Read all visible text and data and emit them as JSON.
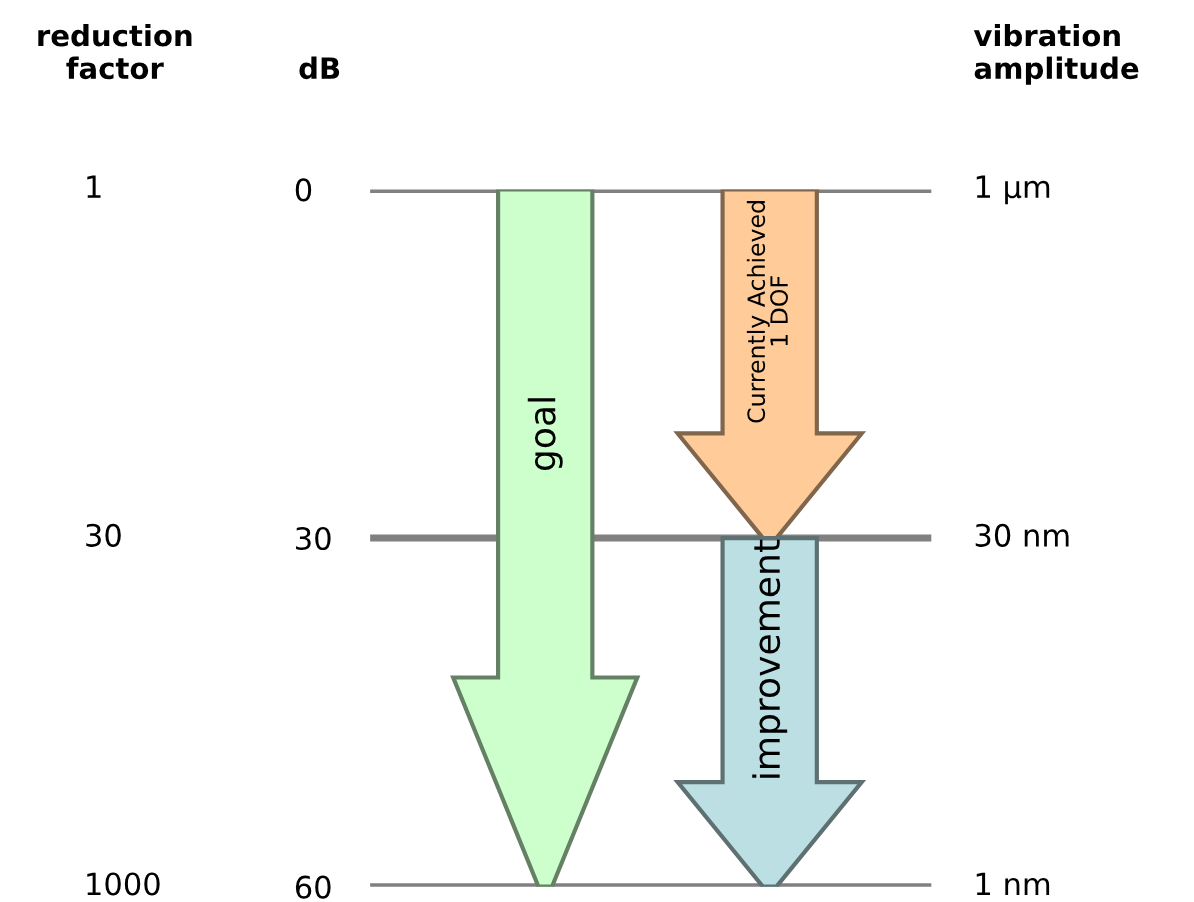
{
  "chart_data": {
    "type": "bar",
    "stacked": true,
    "categories": [
      null,
      null
    ],
    "series": [
      {
        "name": "goal",
        "color": "#ccffcc",
        "values": [
          60,
          null
        ]
      },
      {
        "name": "Currently Achieved\n1 DOF",
        "color": "#ffcc99",
        "values": [
          null,
          30
        ]
      },
      {
        "name": "improvement",
        "color": "#bbdfe3",
        "values": [
          null,
          30
        ]
      }
    ],
    "ylabel": "dB",
    "ylim": [
      60,
      0
    ],
    "yticks": [
      0,
      30,
      60
    ],
    "annotations": [
      "reduction\nfactor",
      "1",
      "30",
      "1000",
      "vibration\namplitude",
      "1 µm",
      "30 nm",
      "1 nm"
    ],
    "grid": "y",
    "legend": false
  }
}
